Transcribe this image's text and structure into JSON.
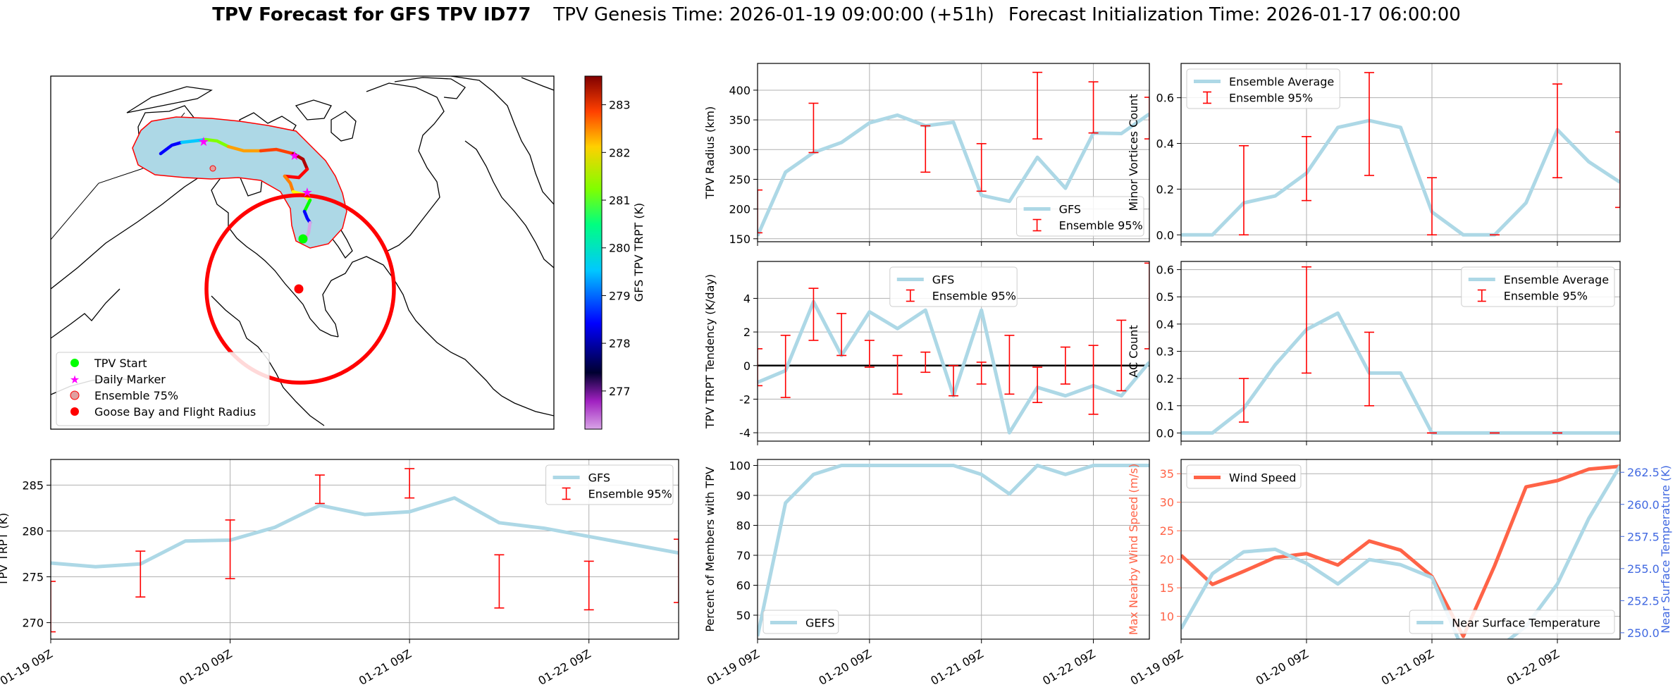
{
  "title": {
    "main": "TPV Forecast for GFS TPV ID77",
    "genesis": "TPV Genesis Time: 2026-01-19 09:00:00 (+51h)",
    "init": "Forecast Initialization Time: 2026-01-17 06:00:00"
  },
  "colors": {
    "gfs": "#add8e6",
    "ensemble": "#ff0000",
    "wind": "#ff6347",
    "temp_axis": "#4169e1",
    "track_fill": "#add8e6",
    "track_edge": "#ff0000",
    "start_marker": "#00ff00",
    "daily_marker": "#ff00ff",
    "goose_bay": "#ff0000"
  },
  "chart_data": [
    {
      "id": "map",
      "type": "map",
      "colorbar": {
        "label": "GFS TPV TRPT (K)",
        "ticks": [
          277,
          278,
          279,
          280,
          281,
          282,
          283
        ],
        "range": [
          276.2,
          283.6
        ]
      },
      "legend": {
        "placement": "lower-left",
        "entries": [
          "TPV Start",
          "Daily Marker",
          "Ensemble 75%",
          "Goose Bay and Flight Radius"
        ]
      }
    },
    {
      "id": "radius",
      "type": "line",
      "ylabel": "TPV Radius (km)",
      "ylim": [
        145,
        445
      ],
      "yticks": [
        150,
        200,
        250,
        300,
        350,
        400
      ],
      "xlim": [
        0,
        3.5
      ],
      "xticks": [
        0,
        1,
        2,
        3
      ],
      "xticklabels": [
        "01-19 09Z",
        "01-20 09Z",
        "01-21 09Z",
        "01-22 09Z"
      ],
      "xaxis_time_labels": false,
      "legend": {
        "placement": "lower-right"
      },
      "series": [
        {
          "name": "GFS",
          "kind": "line",
          "x": [
            0,
            0.25,
            0.5,
            0.75,
            1,
            1.25,
            1.5,
            1.75,
            2,
            2.25,
            2.5,
            2.75,
            3,
            3.25,
            3.5
          ],
          "y": [
            155,
            262,
            295,
            312,
            345,
            358,
            340,
            346,
            223,
            213,
            287,
            235,
            328,
            327,
            360
          ]
        },
        {
          "name": "Ensemble 95%",
          "kind": "errorbar",
          "x": [
            0,
            0.5,
            1.5,
            2,
            2.5,
            3,
            3.5
          ],
          "lo": [
            160,
            295,
            262,
            230,
            318,
            328,
            318
          ],
          "hi": [
            232,
            378,
            340,
            310,
            430,
            414,
            388
          ]
        }
      ]
    },
    {
      "id": "minor",
      "type": "line",
      "ylabel": "Minor Vortices Count",
      "ylim": [
        -0.03,
        0.75
      ],
      "yticks": [
        0.0,
        0.2,
        0.4,
        0.6
      ],
      "xlim": [
        0,
        3.5
      ],
      "xticks": [
        0,
        1,
        2,
        3
      ],
      "xticklabels": [
        "01-19 09Z",
        "01-20 09Z",
        "01-21 09Z",
        "01-22 09Z"
      ],
      "xaxis_time_labels": false,
      "legend": {
        "placement": "top-left"
      },
      "series": [
        {
          "name": "Ensemble Average",
          "kind": "line",
          "x": [
            0,
            0.25,
            0.5,
            0.75,
            1,
            1.25,
            1.5,
            1.75,
            2,
            2.25,
            2.5,
            2.75,
            3,
            3.25,
            3.5
          ],
          "y": [
            0,
            0,
            0.14,
            0.17,
            0.27,
            0.47,
            0.5,
            0.47,
            0.1,
            0,
            0,
            0.14,
            0.46,
            0.32,
            0.23
          ]
        },
        {
          "name": "Ensemble 95%",
          "kind": "errorbar",
          "x": [
            0.5,
            1,
            1.5,
            2,
            2.5,
            3,
            3.5
          ],
          "lo": [
            0,
            0.15,
            0.26,
            0,
            0,
            0.25,
            0.12
          ],
          "hi": [
            0.39,
            0.43,
            0.71,
            0.25,
            0,
            0.66,
            0.45
          ]
        }
      ]
    },
    {
      "id": "tendency",
      "type": "line",
      "ylabel": "TPV TRPT Tendency (K/day)",
      "ylim": [
        -4.5,
        6.2
      ],
      "yticks": [
        -4,
        -2,
        0,
        2,
        4
      ],
      "zero_line": true,
      "xlim": [
        0,
        3.5
      ],
      "xticks": [
        0,
        1,
        2,
        3
      ],
      "xticklabels": [
        "01-19 09Z",
        "01-20 09Z",
        "01-21 09Z",
        "01-22 09Z"
      ],
      "xaxis_time_labels": false,
      "legend": {
        "placement": "top-center"
      },
      "series": [
        {
          "name": "GFS",
          "kind": "line",
          "x": [
            0,
            0.25,
            0.5,
            0.75,
            1,
            1.25,
            1.5,
            1.75,
            2,
            2.25,
            2.5,
            2.75,
            3,
            3.25,
            3.5
          ],
          "y": [
            -1.0,
            -0.3,
            3.8,
            0.6,
            3.2,
            2.2,
            3.3,
            -1.8,
            3.3,
            -4.0,
            -1.3,
            -1.8,
            -1.2,
            -1.8,
            0.2
          ]
        },
        {
          "name": "Ensemble 95%",
          "kind": "errorbar",
          "x": [
            0,
            0.25,
            0.5,
            0.75,
            1,
            1.25,
            1.5,
            1.75,
            2,
            2.25,
            2.5,
            2.75,
            3,
            3.25,
            3.5
          ],
          "lo": [
            -1.2,
            -1.9,
            1.5,
            0.6,
            -0.1,
            -1.7,
            -0.4,
            -1.8,
            -1.1,
            -1.7,
            -2.2,
            -1.1,
            -2.9,
            -1.5,
            1.0
          ],
          "hi": [
            1.0,
            1.8,
            4.6,
            3.1,
            1.5,
            0.6,
            0.8,
            0.0,
            0.2,
            1.8,
            -0.1,
            1.1,
            1.2,
            2.7,
            6.1
          ]
        }
      ]
    },
    {
      "id": "ac",
      "type": "line",
      "ylabel": "AC Count",
      "ylim": [
        -0.03,
        0.63
      ],
      "yticks": [
        0.0,
        0.1,
        0.2,
        0.3,
        0.4,
        0.5,
        0.6
      ],
      "xlim": [
        0,
        3.5
      ],
      "xticks": [
        0,
        1,
        2,
        3
      ],
      "xticklabels": [
        "01-19 09Z",
        "01-20 09Z",
        "01-21 09Z",
        "01-22 09Z"
      ],
      "xaxis_time_labels": false,
      "legend": {
        "placement": "top-right"
      },
      "series": [
        {
          "name": "Ensemble Average",
          "kind": "line",
          "x": [
            0,
            0.25,
            0.5,
            0.75,
            1,
            1.25,
            1.5,
            1.75,
            2,
            2.25,
            2.5,
            2.75,
            3,
            3.25,
            3.5
          ],
          "y": [
            0,
            0,
            0.09,
            0.25,
            0.38,
            0.44,
            0.22,
            0.22,
            0,
            0,
            0,
            0,
            0,
            0,
            0
          ]
        },
        {
          "name": "Ensemble 95%",
          "kind": "errorbar",
          "x": [
            0.5,
            1,
            1.5,
            2,
            2.5,
            3
          ],
          "lo": [
            0.04,
            0.22,
            0.1,
            0,
            0,
            0
          ],
          "hi": [
            0.2,
            0.61,
            0.37,
            0,
            0,
            0
          ]
        }
      ]
    },
    {
      "id": "trpt",
      "type": "line",
      "ylabel": "TPV TRPT (K)",
      "ylim": [
        268.2,
        287.8
      ],
      "yticks": [
        270,
        275,
        280,
        285
      ],
      "xlim": [
        0,
        3.5
      ],
      "xticks": [
        0,
        1,
        2,
        3
      ],
      "xticklabels": [
        "01-19 09Z",
        "01-20 09Z",
        "01-21 09Z",
        "01-22 09Z"
      ],
      "xaxis_time_labels": true,
      "legend": {
        "placement": "top-right"
      },
      "series": [
        {
          "name": "GFS",
          "kind": "line",
          "x": [
            0,
            0.25,
            0.5,
            0.75,
            1,
            1.25,
            1.5,
            1.75,
            2,
            2.25,
            2.5,
            2.75,
            3,
            3.25,
            3.5
          ],
          "y": [
            276.5,
            276.1,
            276.4,
            278.9,
            279.0,
            280.4,
            282.8,
            281.8,
            282.1,
            283.6,
            280.9,
            280.3,
            279.4,
            278.5,
            277.6
          ]
        },
        {
          "name": "Ensemble 95%",
          "kind": "errorbar",
          "x": [
            0,
            0.5,
            1,
            1.5,
            2,
            2.5,
            3,
            3.5
          ],
          "lo": [
            269.0,
            272.8,
            274.8,
            283.0,
            283.6,
            271.6,
            271.4,
            272.2
          ],
          "hi": [
            274.5,
            277.8,
            281.2,
            286.1,
            286.8,
            277.4,
            276.7,
            279.1
          ]
        }
      ]
    },
    {
      "id": "percent",
      "type": "line",
      "ylabel": "Percent of Members with TPV",
      "ylim": [
        42,
        102
      ],
      "yticks": [
        50,
        60,
        70,
        80,
        90,
        100
      ],
      "xlim": [
        0,
        3.5
      ],
      "xticks": [
        0,
        1,
        2,
        3
      ],
      "xticklabels": [
        "01-19 09Z",
        "01-20 09Z",
        "01-21 09Z",
        "01-22 09Z"
      ],
      "xaxis_time_labels": true,
      "legend": {
        "placement": "lower-left"
      },
      "series": [
        {
          "name": "GEFS",
          "kind": "line",
          "x": [
            0,
            0.25,
            0.5,
            0.75,
            1,
            1.25,
            1.5,
            1.75,
            2,
            2.25,
            2.5,
            2.75,
            3,
            3.25,
            3.5
          ],
          "y": [
            43,
            87.5,
            97,
            100,
            100,
            100,
            100,
            100,
            97,
            90.5,
            100,
            97,
            100,
            100,
            100
          ]
        }
      ]
    },
    {
      "id": "wind",
      "type": "line",
      "ylabel": "Max Nearby Wind Speed (m/s)",
      "ylim": [
        6,
        37.5
      ],
      "yticks": [
        10,
        15,
        20,
        25,
        30,
        35
      ],
      "ylabel2": "Near Surface Temperature (K)",
      "ylim2": [
        249.5,
        263.5
      ],
      "yticks2": [
        250.0,
        252.5,
        255.0,
        257.5,
        260.0,
        262.5
      ],
      "xlim": [
        0,
        3.5
      ],
      "xticks": [
        0,
        1,
        2,
        3
      ],
      "xticklabels": [
        "01-19 09Z",
        "01-20 09Z",
        "01-21 09Z",
        "01-22 09Z"
      ],
      "xaxis_time_labels": true,
      "legend": {
        "placement": "top-left"
      },
      "legend2": {
        "placement": "lower-right"
      },
      "series": [
        {
          "name": "Wind Speed",
          "kind": "line",
          "axis": "left",
          "x": [
            0,
            0.25,
            0.5,
            0.75,
            1,
            1.25,
            1.5,
            1.75,
            2,
            2.25,
            2.5,
            2.75,
            3,
            3.25,
            3.5
          ],
          "y": [
            20.7,
            15.6,
            17.9,
            20.3,
            21.0,
            19.0,
            23.2,
            21.6,
            17.0,
            6.5,
            18.9,
            32.7,
            33.8,
            35.8,
            36.3
          ]
        },
        {
          "name": "Near Surface Temperature",
          "kind": "line",
          "axis": "right",
          "x": [
            0,
            0.25,
            0.5,
            0.75,
            1,
            1.25,
            1.5,
            1.75,
            2,
            2.25,
            2.5,
            2.75,
            3,
            3.25,
            3.5
          ],
          "y": [
            250.3,
            254.6,
            256.3,
            256.5,
            255.4,
            253.8,
            255.7,
            255.3,
            254.3,
            248.6,
            248.6,
            250.5,
            253.8,
            258.9,
            263.0
          ]
        }
      ]
    }
  ]
}
